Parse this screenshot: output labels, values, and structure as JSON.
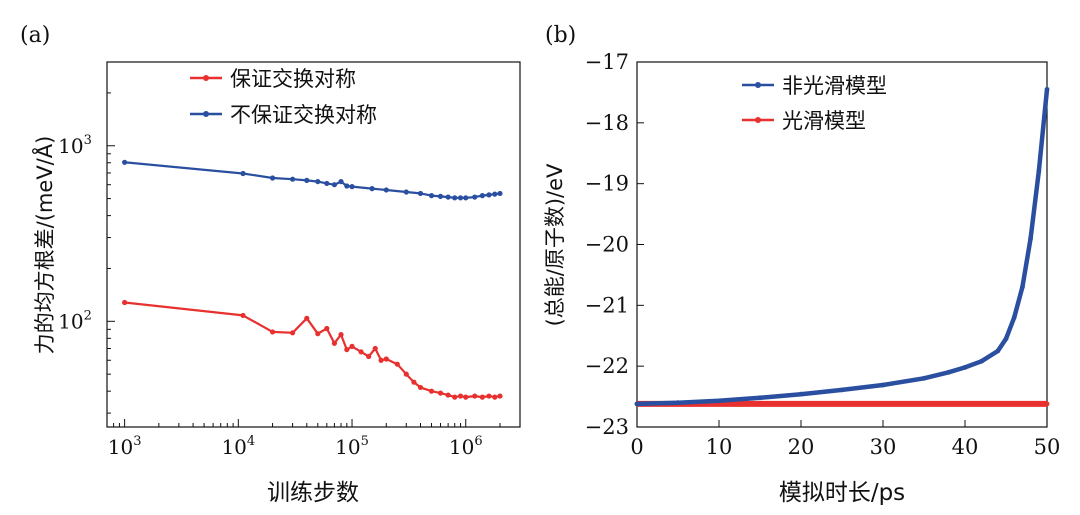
{
  "chart_data": [
    {
      "type": "line",
      "panel_label": "(a)",
      "xlabel": "训练步数",
      "ylabel": "力的均方根差/(meV/Å)",
      "x_scale": "log",
      "y_scale": "log",
      "xlim": [
        700,
        3000000
      ],
      "ylim": [
        25,
        3000
      ],
      "x_tick_labels": [
        {
          "value": 1000,
          "base": "10",
          "exp": "3"
        },
        {
          "value": 10000,
          "base": "10",
          "exp": "4"
        },
        {
          "value": 100000,
          "base": "10",
          "exp": "5"
        },
        {
          "value": 1000000,
          "base": "10",
          "exp": "6"
        }
      ],
      "y_tick_labels": [
        {
          "value": 100,
          "base": "10",
          "exp": "2"
        },
        {
          "value": 1000,
          "base": "10",
          "exp": "3"
        }
      ],
      "legend_position": "top",
      "series": [
        {
          "name": "保证交换对称",
          "color": "#e8302e",
          "x": [
            1000,
            11000,
            20000,
            30000,
            40000,
            50000,
            60000,
            70000,
            80000,
            90000,
            100000,
            120000,
            140000,
            160000,
            180000,
            200000,
            250000,
            300000,
            350000,
            400000,
            500000,
            600000,
            700000,
            800000,
            900000,
            1000000,
            1200000,
            1400000,
            1600000,
            1800000,
            2000000
          ],
          "y": [
            128,
            108,
            87,
            86,
            104,
            85,
            91,
            75,
            84,
            69,
            72,
            67,
            63,
            70,
            60,
            61,
            57,
            50,
            45,
            42,
            40,
            39,
            38,
            37,
            37.5,
            37,
            37.5,
            37,
            37.5,
            37,
            37.5
          ]
        },
        {
          "name": "不保证交换对称",
          "color": "#2a4fa0",
          "x": [
            1000,
            11000,
            20000,
            30000,
            40000,
            50000,
            60000,
            70000,
            80000,
            90000,
            100000,
            150000,
            200000,
            300000,
            400000,
            500000,
            600000,
            700000,
            800000,
            900000,
            1000000,
            1200000,
            1400000,
            1600000,
            1800000,
            2000000
          ],
          "y": [
            805,
            695,
            655,
            645,
            635,
            625,
            610,
            600,
            625,
            590,
            585,
            570,
            560,
            545,
            535,
            520,
            515,
            510,
            505,
            505,
            505,
            510,
            520,
            525,
            530,
            535
          ]
        }
      ]
    },
    {
      "type": "line",
      "panel_label": "(b)",
      "xlabel": "模拟时长/ps",
      "ylabel": "(总能/原子数)/eV",
      "xlim": [
        0,
        50
      ],
      "ylim": [
        -23,
        -17
      ],
      "x_ticks": [
        0,
        10,
        20,
        30,
        40,
        50
      ],
      "y_ticks": [
        -23,
        -22,
        -21,
        -20,
        -19,
        -18,
        -17
      ],
      "x_tick_labels": [
        "0",
        "10",
        "20",
        "30",
        "40",
        "50"
      ],
      "y_tick_labels": [
        "−23",
        "−22",
        "−21",
        "−20",
        "−19",
        "−18",
        "−17"
      ],
      "legend_position": "top-center",
      "series": [
        {
          "name": "非光滑模型",
          "color": "#2a4fa0",
          "x": [
            0,
            5,
            10,
            15,
            20,
            25,
            30,
            35,
            38,
            40,
            42,
            44,
            45,
            46,
            47,
            48,
            49,
            50
          ],
          "y": [
            -22.62,
            -22.6,
            -22.57,
            -22.52,
            -22.46,
            -22.39,
            -22.31,
            -22.2,
            -22.1,
            -22.02,
            -21.92,
            -21.75,
            -21.55,
            -21.2,
            -20.7,
            -19.9,
            -18.8,
            -17.45
          ]
        },
        {
          "name": "光滑模型",
          "color": "#e8302e",
          "x": [
            0,
            50
          ],
          "y": [
            -22.62,
            -22.62
          ]
        }
      ]
    }
  ]
}
